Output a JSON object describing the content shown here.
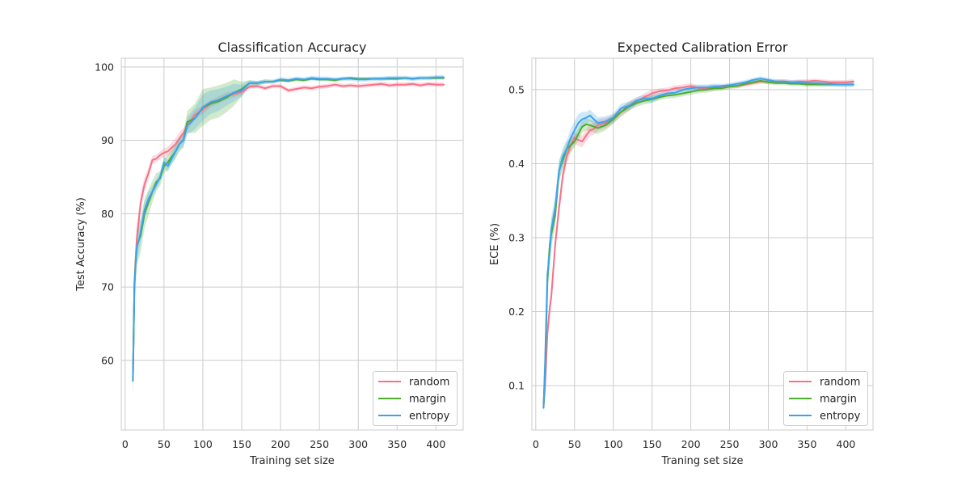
{
  "chart_data": [
    {
      "type": "line",
      "title": "Classification Accuracy",
      "xlabel": "Training set size",
      "ylabel": "Test Accuracy (%)",
      "xlim": [
        -5,
        435
      ],
      "ylim": [
        50.5,
        101.2
      ],
      "xticks": [
        0,
        50,
        100,
        150,
        200,
        250,
        300,
        350,
        400
      ],
      "yticks": [
        60,
        70,
        80,
        90,
        100
      ],
      "grid": true,
      "legend_position": "bottom-right",
      "series": [
        {
          "name": "random",
          "color": "#f77189",
          "x": [
            10,
            12,
            15,
            18,
            20,
            25,
            30,
            35,
            40,
            45,
            50,
            55,
            60,
            65,
            70,
            75,
            80,
            90,
            100,
            110,
            120,
            130,
            140,
            150,
            160,
            170,
            180,
            190,
            200,
            210,
            220,
            230,
            240,
            250,
            260,
            270,
            280,
            290,
            300,
            310,
            320,
            330,
            340,
            350,
            360,
            370,
            380,
            390,
            400,
            410
          ],
          "y": [
            57.5,
            70.5,
            76.5,
            79.5,
            81.5,
            84.0,
            85.5,
            87.3,
            87.5,
            88.0,
            88.3,
            88.5,
            89.0,
            89.5,
            90.3,
            91.0,
            92.0,
            93.5,
            94.2,
            95.0,
            95.5,
            96.0,
            96.3,
            96.6,
            97.3,
            97.4,
            97.1,
            97.4,
            97.4,
            96.8,
            97.0,
            97.2,
            97.1,
            97.3,
            97.4,
            97.6,
            97.4,
            97.5,
            97.4,
            97.5,
            97.6,
            97.7,
            97.5,
            97.6,
            97.6,
            97.7,
            97.5,
            97.7,
            97.6,
            97.6
          ],
          "band": [
            1.2,
            2.5,
            2.0,
            1.5,
            1.2,
            1.0,
            0.8,
            0.6,
            0.5,
            0.5,
            0.6,
            0.6,
            0.7,
            0.8,
            0.8,
            0.7,
            0.7,
            0.6,
            0.6,
            0.5,
            0.5,
            0.5,
            0.4,
            0.4,
            0.3,
            0.3,
            0.3,
            0.3,
            0.3,
            0.3,
            0.3,
            0.3,
            0.3,
            0.3,
            0.3,
            0.3,
            0.3,
            0.3,
            0.3,
            0.3,
            0.3,
            0.3,
            0.3,
            0.3,
            0.3,
            0.3,
            0.3,
            0.3,
            0.3,
            0.3
          ]
        },
        {
          "name": "margin",
          "color": "#4dab2f",
          "x": [
            10,
            12,
            15,
            18,
            20,
            25,
            30,
            35,
            40,
            45,
            50,
            55,
            60,
            65,
            70,
            75,
            80,
            90,
            100,
            110,
            120,
            130,
            140,
            150,
            160,
            170,
            180,
            190,
            200,
            210,
            220,
            230,
            240,
            250,
            260,
            270,
            280,
            290,
            300,
            310,
            320,
            330,
            340,
            350,
            360,
            370,
            380,
            390,
            400,
            410
          ],
          "y": [
            57.2,
            70.5,
            75.5,
            76.5,
            77.0,
            80.0,
            81.5,
            83.0,
            84.3,
            84.8,
            86.5,
            87.0,
            87.8,
            88.5,
            89.5,
            90.0,
            92.5,
            93.0,
            94.5,
            95.0,
            95.3,
            95.8,
            96.5,
            97.0,
            97.8,
            97.8,
            98.0,
            98.0,
            98.2,
            98.1,
            98.3,
            98.2,
            98.4,
            98.3,
            98.3,
            98.2,
            98.4,
            98.5,
            98.4,
            98.4,
            98.4,
            98.4,
            98.4,
            98.4,
            98.5,
            98.4,
            98.5,
            98.5,
            98.5,
            98.5
          ],
          "band": [
            3.0,
            3.0,
            2.5,
            2.5,
            2.3,
            2.0,
            1.8,
            1.5,
            1.2,
            1.0,
            1.0,
            1.0,
            1.0,
            1.0,
            1.0,
            1.0,
            1.5,
            2.0,
            2.5,
            2.2,
            2.2,
            2.0,
            1.8,
            1.0,
            0.4,
            0.3,
            0.3,
            0.2,
            0.2,
            0.2,
            0.2,
            0.2,
            0.2,
            0.2,
            0.2,
            0.2,
            0.2,
            0.2,
            0.2,
            0.2,
            0.2,
            0.2,
            0.2,
            0.2,
            0.2,
            0.2,
            0.2,
            0.2,
            0.2,
            0.2
          ]
        },
        {
          "name": "entropy",
          "color": "#3ba3ec",
          "x": [
            10,
            12,
            15,
            18,
            20,
            25,
            30,
            35,
            40,
            45,
            50,
            55,
            60,
            65,
            70,
            75,
            80,
            90,
            100,
            110,
            120,
            130,
            140,
            150,
            160,
            170,
            180,
            190,
            200,
            210,
            220,
            230,
            240,
            250,
            260,
            270,
            280,
            290,
            300,
            310,
            320,
            330,
            340,
            350,
            360,
            370,
            380,
            390,
            400,
            410
          ],
          "y": [
            57.3,
            70.0,
            75.5,
            76.5,
            77.5,
            80.5,
            82.0,
            83.0,
            84.0,
            85.0,
            87.0,
            86.5,
            87.5,
            88.5,
            89.5,
            90.0,
            92.0,
            93.0,
            94.5,
            95.2,
            95.5,
            96.0,
            96.5,
            96.8,
            97.8,
            97.8,
            98.0,
            98.0,
            98.3,
            98.2,
            98.4,
            98.3,
            98.5,
            98.4,
            98.4,
            98.3,
            98.4,
            98.4,
            98.3,
            98.3,
            98.4,
            98.4,
            98.5,
            98.5,
            98.5,
            98.4,
            98.5,
            98.5,
            98.6,
            98.6
          ],
          "band": [
            2.0,
            2.0,
            1.8,
            1.5,
            1.4,
            1.2,
            1.0,
            0.8,
            0.7,
            0.6,
            0.8,
            0.8,
            0.8,
            0.8,
            0.8,
            0.8,
            1.2,
            1.5,
            1.8,
            1.6,
            1.5,
            1.3,
            1.2,
            0.8,
            0.4,
            0.3,
            0.3,
            0.3,
            0.3,
            0.3,
            0.3,
            0.3,
            0.3,
            0.3,
            0.3,
            0.3,
            0.3,
            0.3,
            0.3,
            0.3,
            0.3,
            0.3,
            0.3,
            0.3,
            0.3,
            0.3,
            0.3,
            0.3,
            0.3,
            0.3
          ]
        }
      ]
    },
    {
      "type": "line",
      "title": "Expected Calibration Error",
      "xlabel": "Traning set size",
      "ylabel": "ECE (%)",
      "xlim": [
        -5,
        435
      ],
      "ylim": [
        0.04,
        0.5425
      ],
      "xticks": [
        0,
        50,
        100,
        150,
        200,
        250,
        300,
        350,
        400
      ],
      "yticks": [
        0.1,
        0.2,
        0.3,
        0.4,
        0.5
      ],
      "grid": true,
      "legend_position": "bottom-right",
      "series": [
        {
          "name": "random",
          "color": "#f77189",
          "x": [
            10,
            12,
            15,
            18,
            20,
            25,
            30,
            35,
            40,
            45,
            50,
            55,
            60,
            65,
            70,
            75,
            80,
            90,
            100,
            110,
            120,
            130,
            140,
            150,
            160,
            170,
            180,
            190,
            200,
            210,
            220,
            230,
            240,
            250,
            260,
            270,
            280,
            290,
            300,
            310,
            320,
            330,
            340,
            350,
            360,
            370,
            380,
            390,
            400,
            410
          ],
          "y": [
            0.07,
            0.1,
            0.17,
            0.205,
            0.22,
            0.29,
            0.34,
            0.385,
            0.41,
            0.425,
            0.435,
            0.432,
            0.43,
            0.438,
            0.445,
            0.447,
            0.452,
            0.455,
            0.46,
            0.47,
            0.478,
            0.484,
            0.49,
            0.495,
            0.498,
            0.499,
            0.502,
            0.503,
            0.505,
            0.502,
            0.502,
            0.503,
            0.503,
            0.505,
            0.505,
            0.507,
            0.509,
            0.511,
            0.511,
            0.511,
            0.511,
            0.51,
            0.511,
            0.511,
            0.512,
            0.511,
            0.51,
            0.51,
            0.51,
            0.511
          ],
          "band": [
            0.004,
            0.01,
            0.012,
            0.012,
            0.012,
            0.012,
            0.012,
            0.01,
            0.01,
            0.01,
            0.008,
            0.008,
            0.008,
            0.008,
            0.008,
            0.008,
            0.008,
            0.007,
            0.006,
            0.006,
            0.006,
            0.005,
            0.005,
            0.005,
            0.004,
            0.004,
            0.004,
            0.004,
            0.004,
            0.004,
            0.004,
            0.004,
            0.003,
            0.003,
            0.003,
            0.003,
            0.003,
            0.003,
            0.003,
            0.003,
            0.003,
            0.003,
            0.003,
            0.003,
            0.003,
            0.003,
            0.003,
            0.003,
            0.003,
            0.003
          ]
        },
        {
          "name": "margin",
          "color": "#4dab2f",
          "x": [
            10,
            12,
            15,
            18,
            20,
            25,
            30,
            35,
            40,
            45,
            50,
            55,
            60,
            65,
            70,
            75,
            80,
            90,
            100,
            110,
            120,
            130,
            140,
            150,
            160,
            170,
            180,
            190,
            200,
            210,
            220,
            230,
            240,
            250,
            260,
            270,
            280,
            290,
            300,
            310,
            320,
            330,
            340,
            350,
            360,
            370,
            380,
            390,
            400,
            410
          ],
          "y": [
            0.07,
            0.12,
            0.24,
            0.29,
            0.305,
            0.33,
            0.39,
            0.405,
            0.42,
            0.425,
            0.43,
            0.44,
            0.45,
            0.453,
            0.452,
            0.45,
            0.448,
            0.452,
            0.46,
            0.47,
            0.477,
            0.482,
            0.485,
            0.487,
            0.49,
            0.492,
            0.493,
            0.495,
            0.497,
            0.499,
            0.5,
            0.502,
            0.502,
            0.504,
            0.505,
            0.508,
            0.51,
            0.512,
            0.51,
            0.509,
            0.509,
            0.508,
            0.508,
            0.507,
            0.507,
            0.507,
            0.507,
            0.507,
            0.507,
            0.507
          ],
          "band": [
            0.004,
            0.012,
            0.018,
            0.018,
            0.018,
            0.016,
            0.014,
            0.012,
            0.01,
            0.01,
            0.008,
            0.008,
            0.008,
            0.008,
            0.008,
            0.008,
            0.008,
            0.007,
            0.006,
            0.006,
            0.006,
            0.005,
            0.005,
            0.005,
            0.004,
            0.004,
            0.004,
            0.004,
            0.004,
            0.004,
            0.004,
            0.004,
            0.003,
            0.003,
            0.003,
            0.003,
            0.003,
            0.003,
            0.003,
            0.003,
            0.003,
            0.003,
            0.003,
            0.003,
            0.003,
            0.003,
            0.003,
            0.003,
            0.003,
            0.003
          ]
        },
        {
          "name": "entropy",
          "color": "#3ba3ec",
          "x": [
            10,
            12,
            15,
            18,
            20,
            25,
            30,
            35,
            40,
            45,
            50,
            55,
            60,
            65,
            70,
            75,
            80,
            90,
            100,
            110,
            120,
            130,
            140,
            150,
            160,
            170,
            180,
            190,
            200,
            210,
            220,
            230,
            240,
            250,
            260,
            270,
            280,
            290,
            300,
            310,
            320,
            330,
            340,
            350,
            360,
            370,
            380,
            390,
            400,
            410
          ],
          "y": [
            0.07,
            0.13,
            0.25,
            0.28,
            0.31,
            0.34,
            0.39,
            0.41,
            0.42,
            0.435,
            0.445,
            0.455,
            0.46,
            0.462,
            0.465,
            0.46,
            0.455,
            0.457,
            0.462,
            0.475,
            0.478,
            0.485,
            0.488,
            0.488,
            0.492,
            0.495,
            0.496,
            0.5,
            0.502,
            0.503,
            0.503,
            0.504,
            0.505,
            0.506,
            0.508,
            0.51,
            0.513,
            0.515,
            0.513,
            0.511,
            0.511,
            0.51,
            0.51,
            0.509,
            0.509,
            0.508,
            0.508,
            0.507,
            0.507,
            0.507
          ],
          "band": [
            0.004,
            0.012,
            0.018,
            0.018,
            0.018,
            0.016,
            0.014,
            0.012,
            0.012,
            0.012,
            0.012,
            0.012,
            0.01,
            0.008,
            0.008,
            0.008,
            0.008,
            0.007,
            0.006,
            0.006,
            0.006,
            0.005,
            0.005,
            0.005,
            0.004,
            0.004,
            0.004,
            0.004,
            0.004,
            0.004,
            0.004,
            0.004,
            0.003,
            0.003,
            0.003,
            0.003,
            0.003,
            0.003,
            0.003,
            0.003,
            0.003,
            0.003,
            0.003,
            0.003,
            0.003,
            0.003,
            0.003,
            0.003,
            0.003,
            0.003
          ]
        }
      ]
    }
  ]
}
